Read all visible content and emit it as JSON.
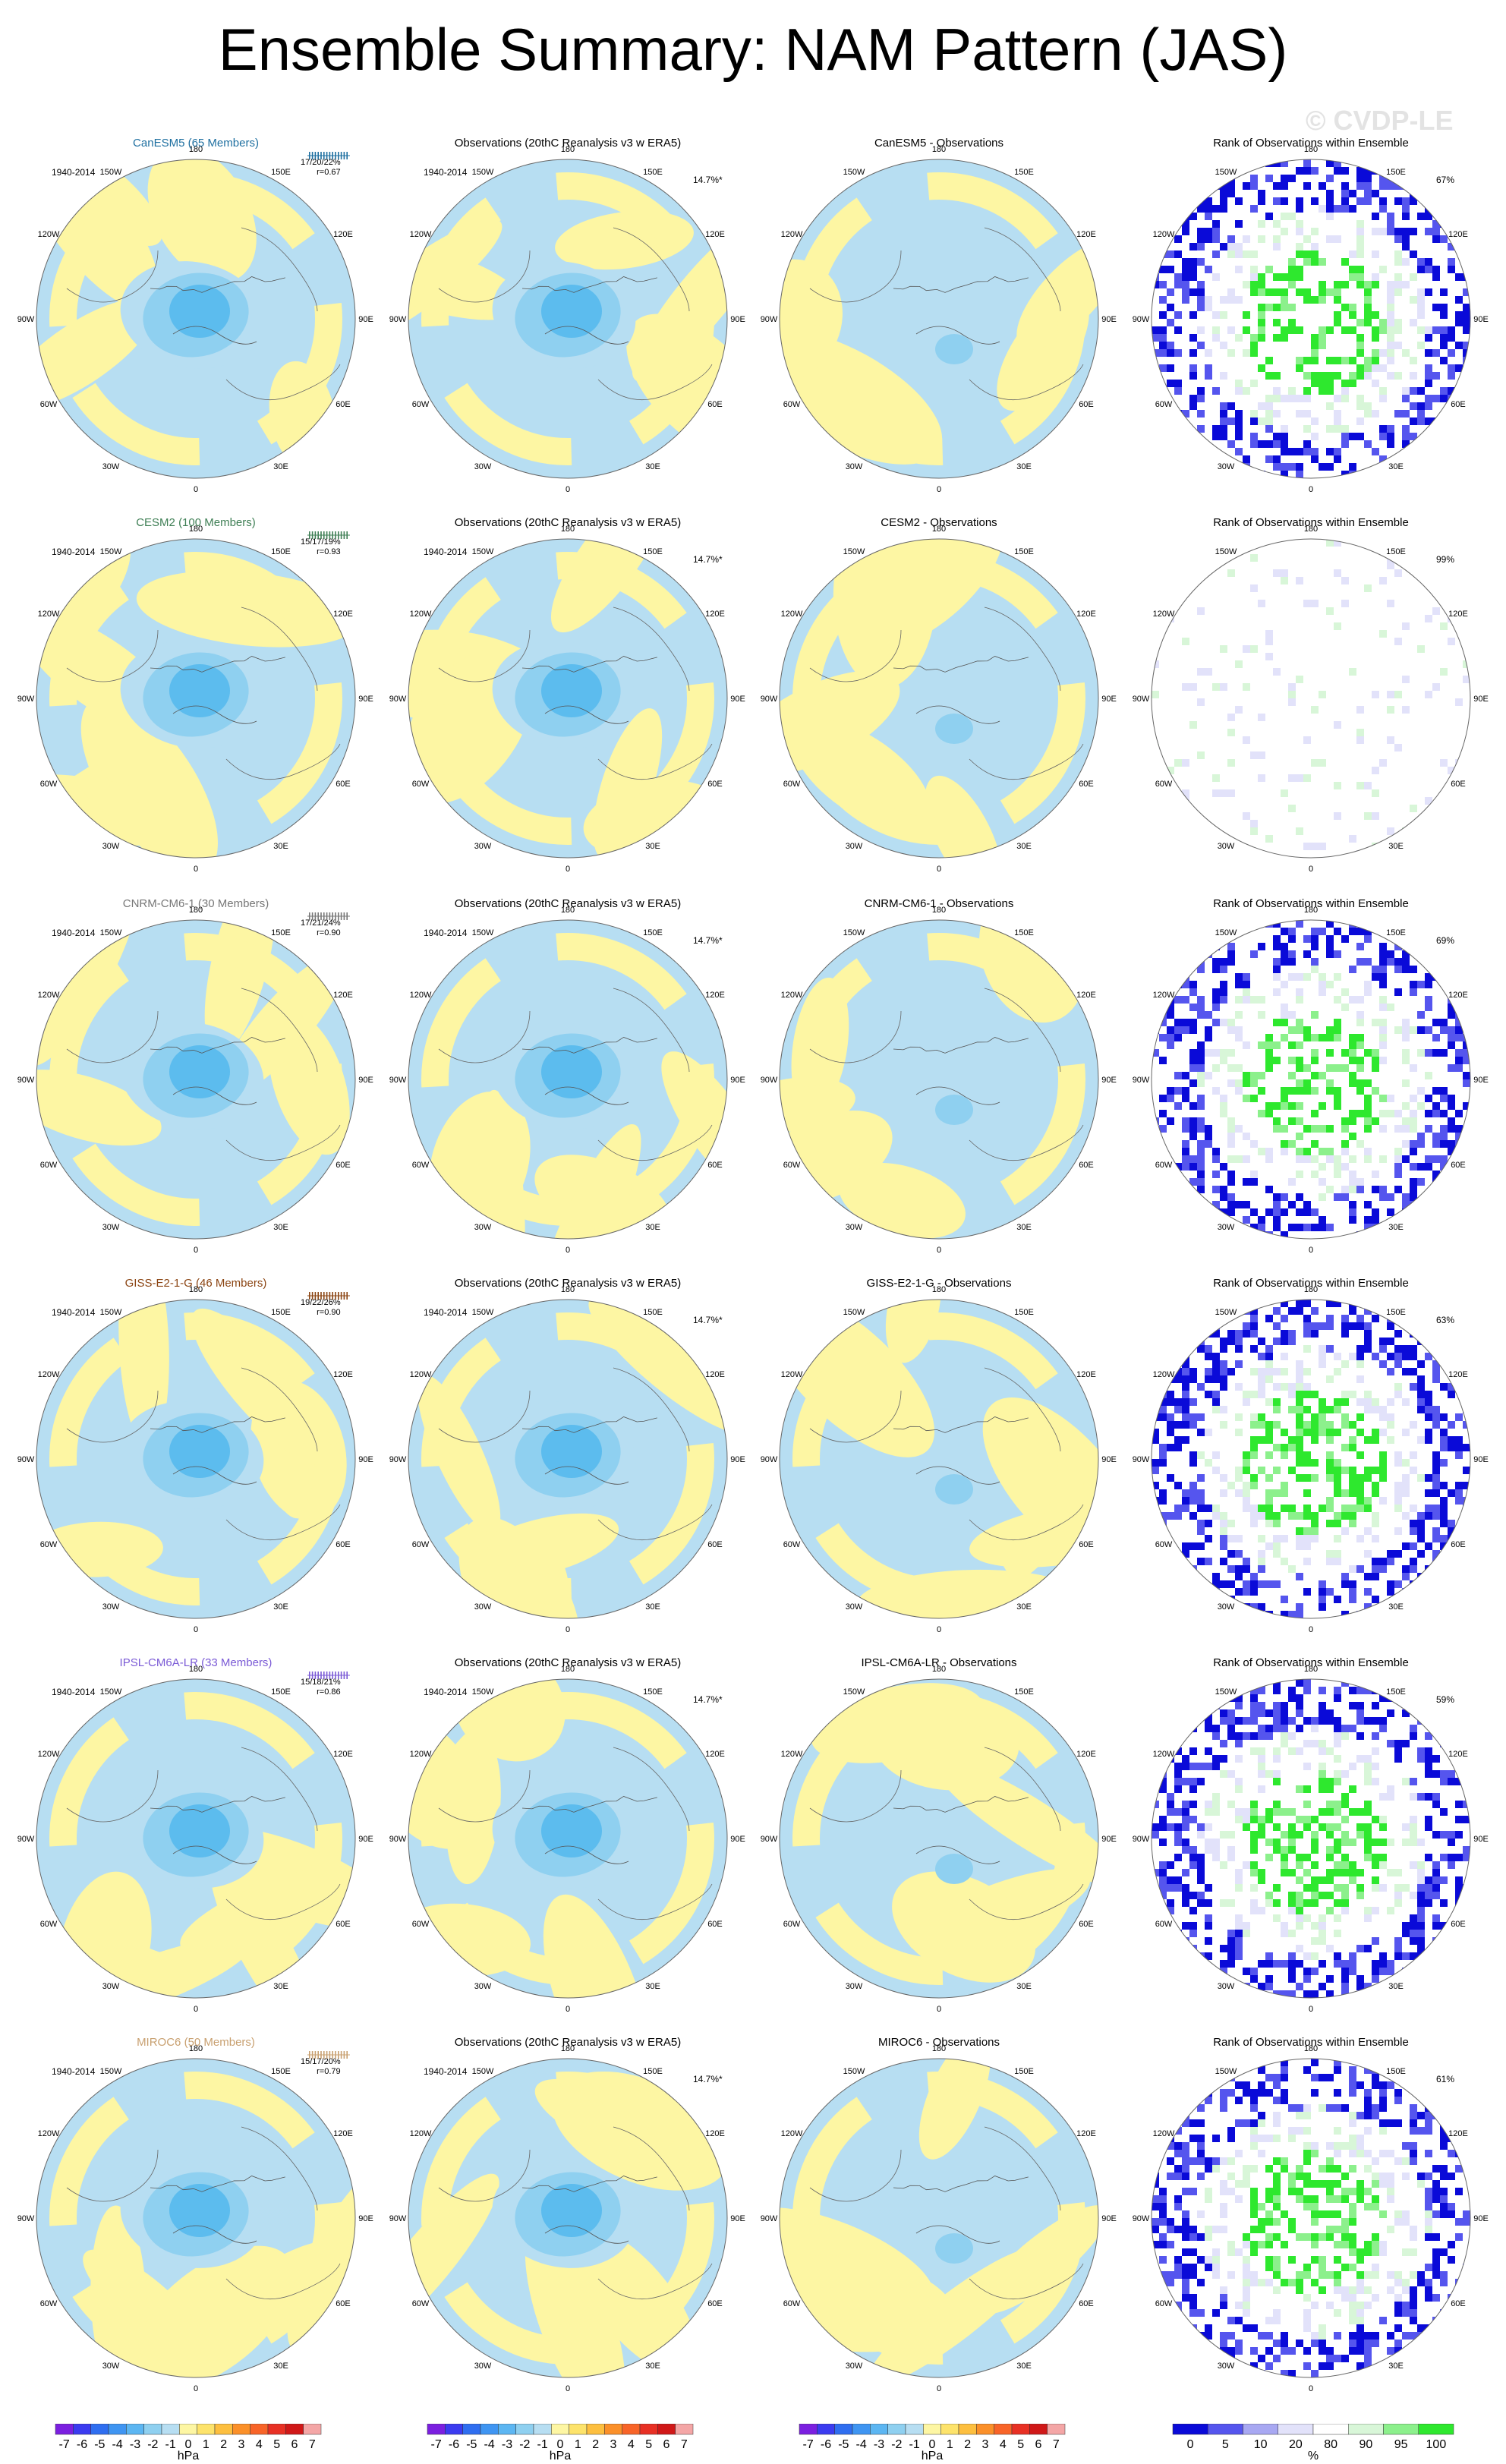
{
  "title": "Ensemble Summary: NAM Pattern (JAS)",
  "watermark": "© CVDP-LE",
  "period": "1940-2014",
  "obs_pct": "14.7%*",
  "colors": {
    "land_blue": "#b7def2",
    "yellow": "#fdf6a3",
    "blue2": "#8fd0f0",
    "blue3": "#5cbcee",
    "blue_dark": "#1f8fe0",
    "green": "#2ee82e",
    "navy": "#1010d8"
  },
  "longitude_labels": [
    "180",
    "150E",
    "120E",
    "90E",
    "60E",
    "30E",
    "0",
    "30W",
    "60W",
    "90W",
    "120W",
    "150W"
  ],
  "rows": [
    {
      "model": "CanESM5 (65 Members)",
      "model_color": "#1e6fa0",
      "stats": "17/20/22%",
      "r": "r=0.67",
      "diff_title": "CanESM5 - Observations",
      "rank_pct": "67%",
      "rank_level": "high"
    },
    {
      "model": "CESM2 (100 Members)",
      "model_color": "#3f7f55",
      "stats": "15/17/19%",
      "r": "r=0.93",
      "diff_title": "CESM2 - Observations",
      "rank_pct": "99%",
      "rank_level": "low"
    },
    {
      "model": "CNRM-CM6-1 (30 Members)",
      "model_color": "#777777",
      "stats": "17/21/24%",
      "r": "r=0.90",
      "diff_title": "CNRM-CM6-1 - Observations",
      "rank_pct": "69%",
      "rank_level": "high"
    },
    {
      "model": "GISS-E2-1-G (46 Members)",
      "model_color": "#8b4513",
      "stats": "19/22/26%",
      "r": "r=0.90",
      "diff_title": "GISS-E2-1-G - Observations",
      "rank_pct": "63%",
      "rank_level": "high"
    },
    {
      "model": "IPSL-CM6A-LR (33 Members)",
      "model_color": "#7b5bd6",
      "stats": "15/18/21%",
      "r": "r=0.86",
      "diff_title": "IPSL-CM6A-LR - Observations",
      "rank_pct": "59%",
      "rank_level": "high"
    },
    {
      "model": "MIROC6 (50 Members)",
      "model_color": "#c8a070",
      "stats": "15/17/20%",
      "r": "r=0.79",
      "diff_title": "MIROC6 - Observations",
      "rank_pct": "61%",
      "rank_level": "high"
    }
  ],
  "obs_title": "Observations (20thC Reanalysis v3 w ERA5)",
  "rank_title": "Rank of Observations within Ensemble",
  "colorbar_hpa": {
    "ticks": [
      "-7",
      "-6",
      "-5",
      "-4",
      "-3",
      "-2",
      "-1",
      "0",
      "1",
      "2",
      "3",
      "4",
      "5",
      "6",
      "7"
    ],
    "unit": "hPa",
    "colors": [
      "#7b1fe0",
      "#3b3bf0",
      "#2f6ef0",
      "#3f95f2",
      "#5cb6f2",
      "#8fd0f0",
      "#b7def2",
      "#fdf6a3",
      "#fde36b",
      "#fdbf3f",
      "#fb9029",
      "#f86428",
      "#e83024",
      "#d01818",
      "#f4a6a6"
    ]
  },
  "colorbar_rank": {
    "ticks": [
      "0",
      "5",
      "10",
      "20",
      "80",
      "90",
      "95",
      "100"
    ],
    "unit": "%",
    "colors": [
      "#0a0ad8",
      "#5555ee",
      "#a8a8f2",
      "#e2e2fa",
      "#ffffff",
      "#d8f6d8",
      "#8cf08c",
      "#2ee82e"
    ]
  }
}
